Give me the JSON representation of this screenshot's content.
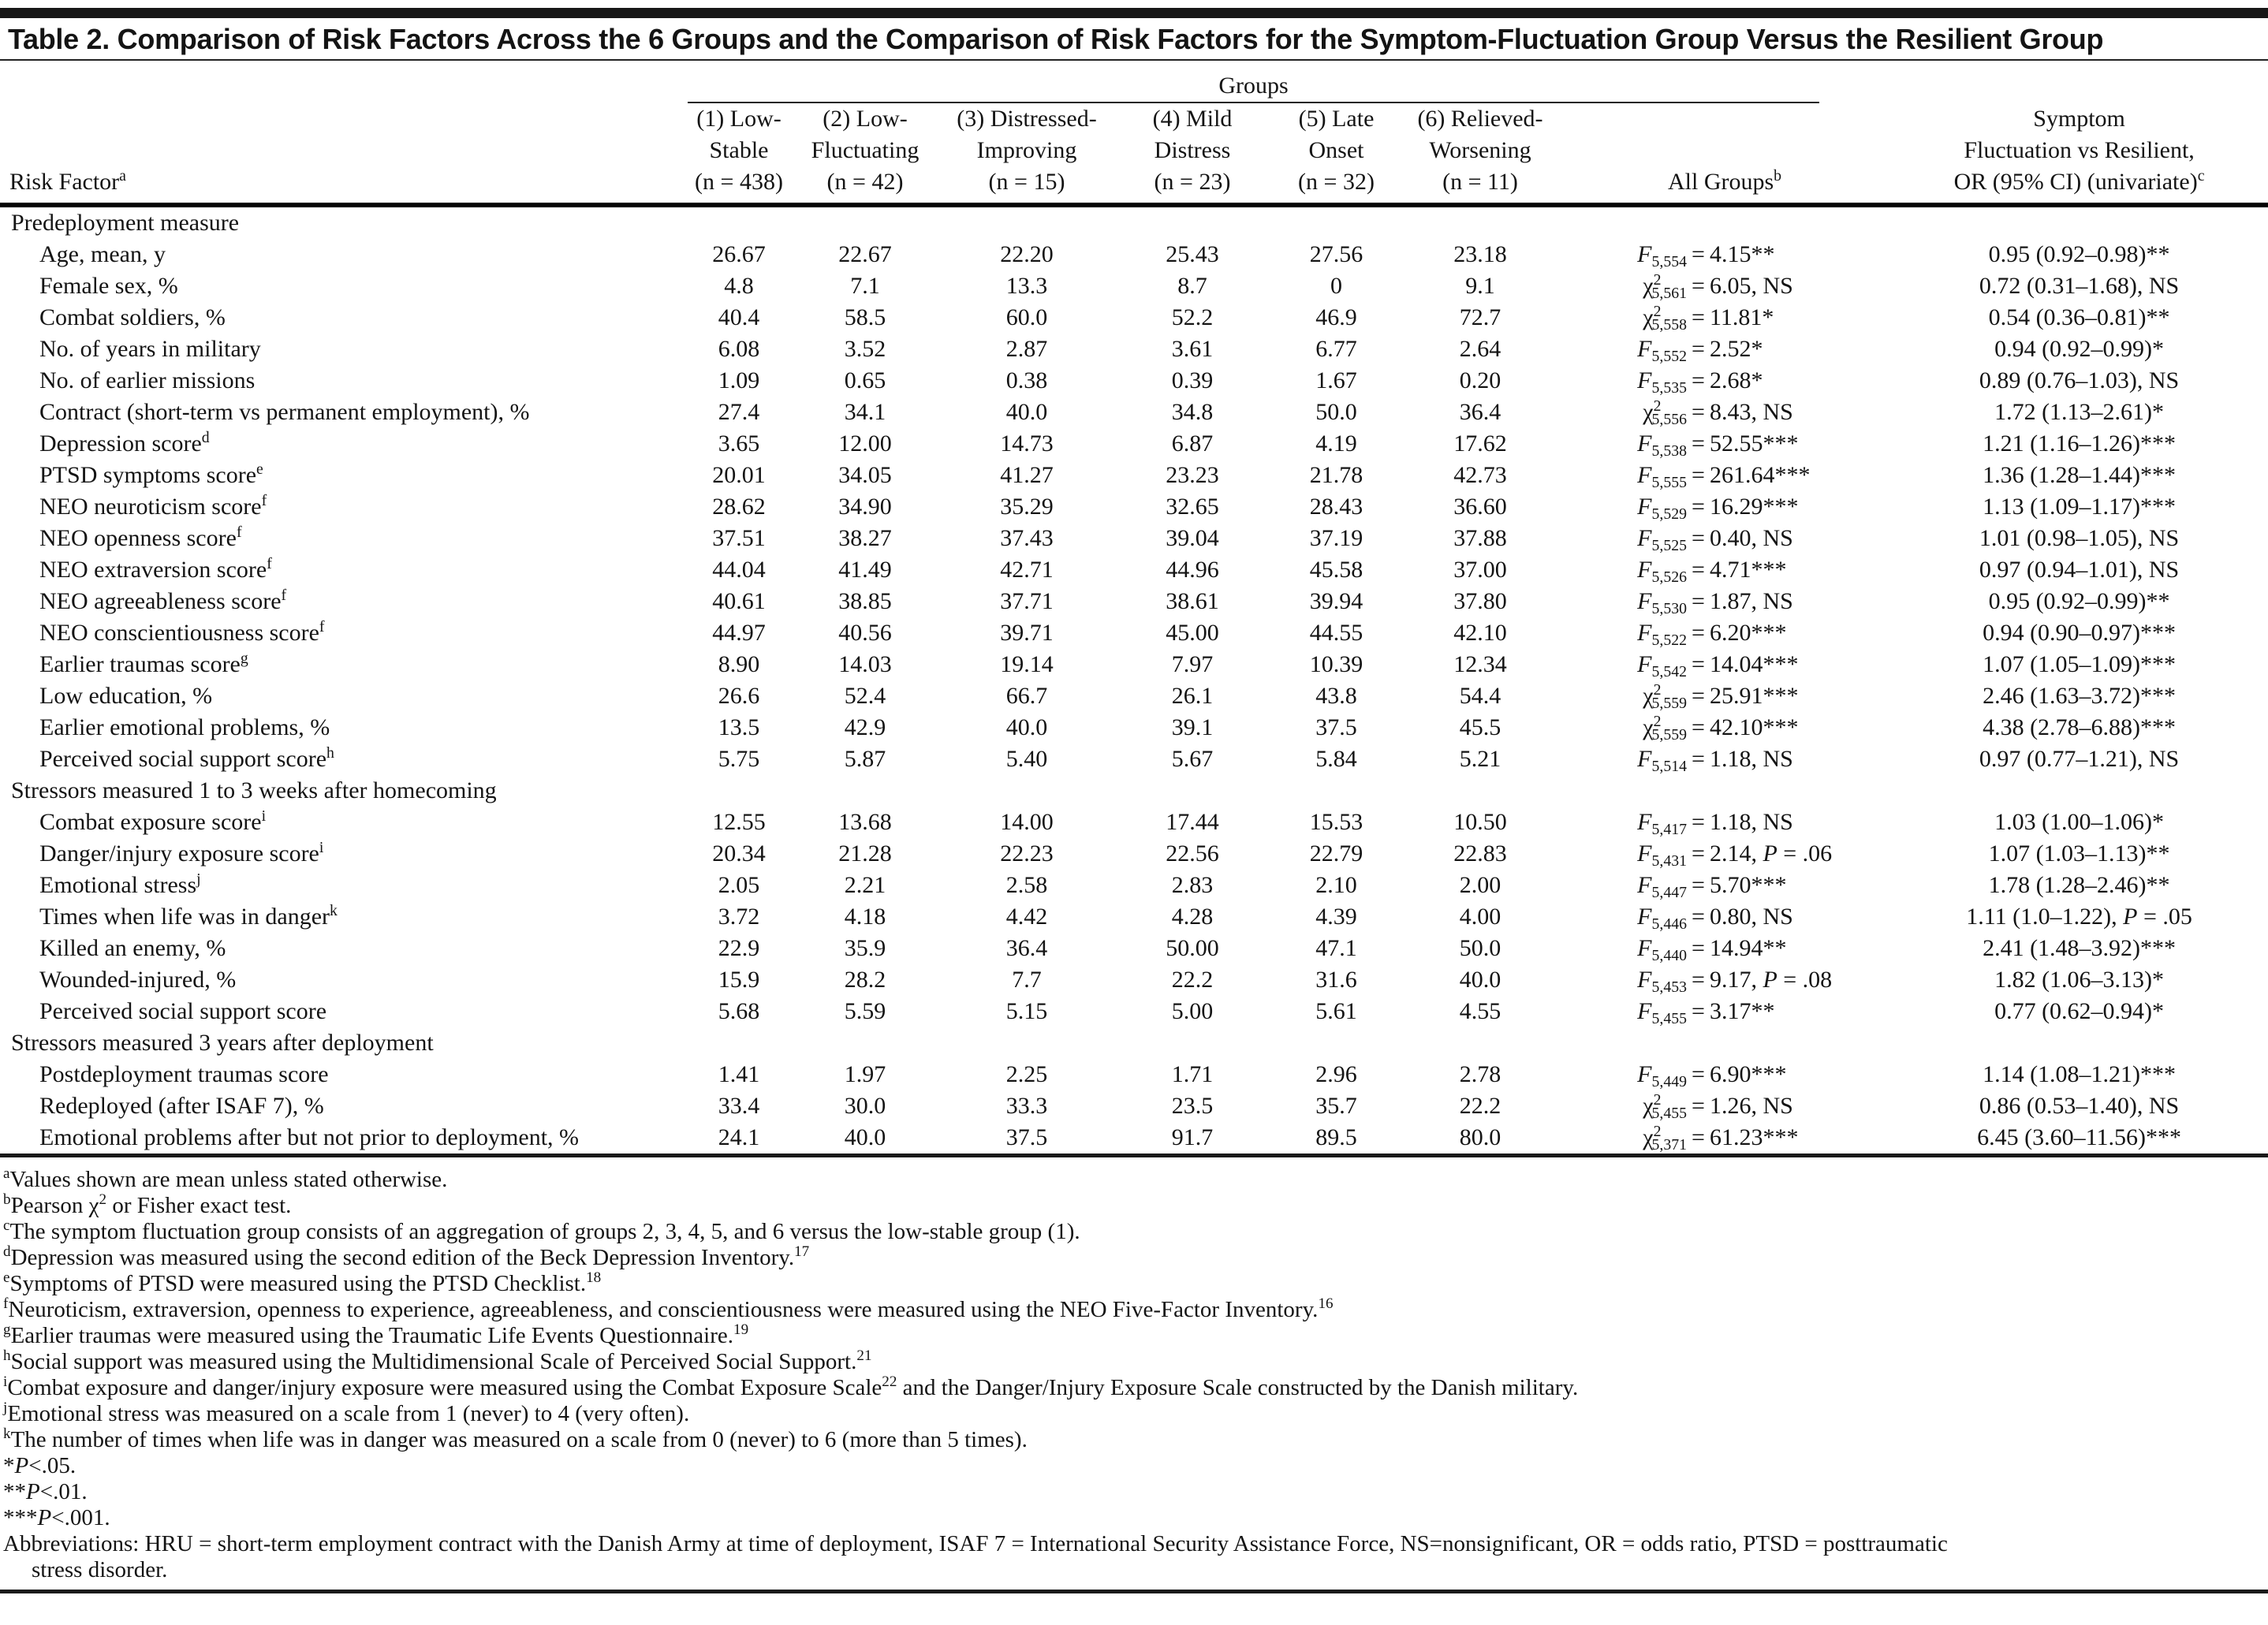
{
  "title": "Table 2. Comparison of Risk Factors Across the 6 Groups and the Comparison of Risk Factors for the Symptom-Fluctuation Group Versus the Resilient Group",
  "header": {
    "groups_spanner": "Groups",
    "risk_factor": {
      "label": "Risk Factor",
      "sup": "a"
    },
    "group_columns": [
      {
        "lines": [
          "(1) Low-",
          "Stable",
          "(n = 438)"
        ]
      },
      {
        "lines": [
          "(2) Low-",
          "Fluctuating",
          "(n = 42)"
        ]
      },
      {
        "lines": [
          "(3) Distressed-",
          "Improving",
          "(n = 15)"
        ]
      },
      {
        "lines": [
          "(4) Mild",
          "Distress",
          "(n = 23)"
        ]
      },
      {
        "lines": [
          "(5) Late",
          "Onset",
          "(n = 32)"
        ]
      },
      {
        "lines": [
          "(6) Relieved-",
          "Worsening",
          "(n = 11)"
        ]
      }
    ],
    "all_groups": {
      "label": "All Groups",
      "sup": "b"
    },
    "or_column": {
      "lines": [
        "Symptom",
        "Fluctuation vs Resilient,",
        "OR (95% CI) (univariate)"
      ],
      "sup": "c"
    }
  },
  "sections": [
    {
      "label": "Predeployment measure",
      "rows": [
        {
          "label": "Age, mean, y",
          "sup": "",
          "values": [
            "26.67",
            "22.67",
            "22.20",
            "25.43",
            "27.56",
            "23.18"
          ],
          "stat": {
            "sym": "F",
            "sub": "5,554",
            "rest": "4.15**"
          },
          "or": "0.95 (0.92–0.98)**"
        },
        {
          "label": "Female sex, %",
          "sup": "",
          "values": [
            "4.8",
            "7.1",
            "13.3",
            "8.7",
            "0",
            "9.1"
          ],
          "stat": {
            "sym": "χ2",
            "sub": "5,561",
            "rest": "6.05, NS"
          },
          "or": "0.72 (0.31–1.68), NS"
        },
        {
          "label": "Combat soldiers, %",
          "sup": "",
          "values": [
            "40.4",
            "58.5",
            "60.0",
            "52.2",
            "46.9",
            "72.7"
          ],
          "stat": {
            "sym": "χ2",
            "sub": "5,558",
            "rest": "11.81*"
          },
          "or": "0.54 (0.36–0.81)**"
        },
        {
          "label": "No. of years in military",
          "sup": "",
          "values": [
            "6.08",
            "3.52",
            "2.87",
            "3.61",
            "6.77",
            "2.64"
          ],
          "stat": {
            "sym": "F",
            "sub": "5,552",
            "rest": "2.52*"
          },
          "or": "0.94 (0.92–0.99)*"
        },
        {
          "label": "No. of earlier missions",
          "sup": "",
          "values": [
            "1.09",
            "0.65",
            "0.38",
            "0.39",
            "1.67",
            "0.20"
          ],
          "stat": {
            "sym": "F",
            "sub": "5,535",
            "rest": "2.68*"
          },
          "or": "0.89 (0.76–1.03), NS"
        },
        {
          "label": "Contract (short-term vs permanent employment), %",
          "sup": "",
          "values": [
            "27.4",
            "34.1",
            "40.0",
            "34.8",
            "50.0",
            "36.4"
          ],
          "stat": {
            "sym": "χ2",
            "sub": "5,556",
            "rest": "8.43, NS"
          },
          "or": "1.72 (1.13–2.61)*"
        },
        {
          "label": "Depression score",
          "sup": "d",
          "values": [
            "3.65",
            "12.00",
            "14.73",
            "6.87",
            "4.19",
            "17.62"
          ],
          "stat": {
            "sym": "F",
            "sub": "5,538",
            "rest": "52.55***"
          },
          "or": "1.21 (1.16–1.26)***"
        },
        {
          "label": "PTSD symptoms score",
          "sup": "e",
          "values": [
            "20.01",
            "34.05",
            "41.27",
            "23.23",
            "21.78",
            "42.73"
          ],
          "stat": {
            "sym": "F",
            "sub": "5,555",
            "rest": "261.64***"
          },
          "or": "1.36 (1.28–1.44)***"
        },
        {
          "label": "NEO neuroticism score",
          "sup": "f",
          "values": [
            "28.62",
            "34.90",
            "35.29",
            "32.65",
            "28.43",
            "36.60"
          ],
          "stat": {
            "sym": "F",
            "sub": "5,529",
            "rest": "16.29***"
          },
          "or": "1.13 (1.09–1.17)***"
        },
        {
          "label": "NEO openness score",
          "sup": "f",
          "values": [
            "37.51",
            "38.27",
            "37.43",
            "39.04",
            "37.19",
            "37.88"
          ],
          "stat": {
            "sym": "F",
            "sub": "5,525",
            "rest": "0.40, NS"
          },
          "or": "1.01 (0.98–1.05), NS"
        },
        {
          "label": "NEO extraversion score",
          "sup": "f",
          "values": [
            "44.04",
            "41.49",
            "42.71",
            "44.96",
            "45.58",
            "37.00"
          ],
          "stat": {
            "sym": "F",
            "sub": "5,526",
            "rest": "4.71***"
          },
          "or": "0.97 (0.94–1.01), NS"
        },
        {
          "label": "NEO agreeableness score",
          "sup": "f",
          "values": [
            "40.61",
            "38.85",
            "37.71",
            "38.61",
            "39.94",
            "37.80"
          ],
          "stat": {
            "sym": "F",
            "sub": "5,530",
            "rest": "1.87, NS"
          },
          "or": "0.95 (0.92–0.99)**"
        },
        {
          "label": "NEO conscientiousness score",
          "sup": "f",
          "values": [
            "44.97",
            "40.56",
            "39.71",
            "45.00",
            "44.55",
            "42.10"
          ],
          "stat": {
            "sym": "F",
            "sub": "5,522",
            "rest": "6.20***"
          },
          "or": "0.94 (0.90–0.97)***"
        },
        {
          "label": "Earlier traumas score",
          "sup": "g",
          "values": [
            "8.90",
            "14.03",
            "19.14",
            "7.97",
            "10.39",
            "12.34"
          ],
          "stat": {
            "sym": "F",
            "sub": "5,542",
            "rest": "14.04***"
          },
          "or": "1.07 (1.05–1.09)***"
        },
        {
          "label": "Low education, %",
          "sup": "",
          "values": [
            "26.6",
            "52.4",
            "66.7",
            "26.1",
            "43.8",
            "54.4"
          ],
          "stat": {
            "sym": "χ2",
            "sub": "5,559",
            "rest": "25.91***"
          },
          "or": "2.46 (1.63–3.72)***"
        },
        {
          "label": "Earlier emotional problems, %",
          "sup": "",
          "values": [
            "13.5",
            "42.9",
            "40.0",
            "39.1",
            "37.5",
            "45.5"
          ],
          "stat": {
            "sym": "χ2",
            "sub": "5,559",
            "rest": "42.10***"
          },
          "or": "4.38 (2.78–6.88)***"
        },
        {
          "label": "Perceived social support score",
          "sup": "h",
          "values": [
            "5.75",
            "5.87",
            "5.40",
            "5.67",
            "5.84",
            "5.21"
          ],
          "stat": {
            "sym": "F",
            "sub": "5,514",
            "rest": "1.18, NS"
          },
          "or": "0.97 (0.77–1.21), NS"
        }
      ]
    },
    {
      "label": "Stressors measured 1 to 3 weeks after homecoming",
      "rows": [
        {
          "label": "Combat exposure score",
          "sup": "i",
          "values": [
            "12.55",
            "13.68",
            "14.00",
            "17.44",
            "15.53",
            "10.50"
          ],
          "stat": {
            "sym": "F",
            "sub": "5,417",
            "rest": "1.18, NS"
          },
          "or": "1.03 (1.00–1.06)*"
        },
        {
          "label": "Danger/injury exposure score",
          "sup": "i",
          "values": [
            "20.34",
            "21.28",
            "22.23",
            "22.56",
            "22.79",
            "22.83"
          ],
          "stat": {
            "sym": "F",
            "sub": "5,431",
            "rest": "2.14, P = .06"
          },
          "or": "1.07 (1.03–1.13)**"
        },
        {
          "label": "Emotional stress",
          "sup": "j",
          "values": [
            "2.05",
            "2.21",
            "2.58",
            "2.83",
            "2.10",
            "2.00"
          ],
          "stat": {
            "sym": "F",
            "sub": "5,447",
            "rest": "5.70***"
          },
          "or": "1.78 (1.28–2.46)**"
        },
        {
          "label": "Times when life was in danger",
          "sup": "k",
          "values": [
            "3.72",
            "4.18",
            "4.42",
            "4.28",
            "4.39",
            "4.00"
          ],
          "stat": {
            "sym": "F",
            "sub": "5,446",
            "rest": "0.80, NS"
          },
          "or": "1.11 (1.0–1.22), P = .05"
        },
        {
          "label": "Killed an enemy, %",
          "sup": "",
          "values": [
            "22.9",
            "35.9",
            "36.4",
            "50.00",
            "47.1",
            "50.0"
          ],
          "stat": {
            "sym": "F",
            "sub": "5,440",
            "rest": "14.94**"
          },
          "or": "2.41 (1.48–3.92)***"
        },
        {
          "label": "Wounded-injured, %",
          "sup": "",
          "values": [
            "15.9",
            "28.2",
            "7.7",
            "22.2",
            "31.6",
            "40.0"
          ],
          "stat": {
            "sym": "F",
            "sub": "5,453",
            "rest": "9.17, P = .08"
          },
          "or": "1.82 (1.06–3.13)*"
        },
        {
          "label": "Perceived social support score",
          "sup": "",
          "values": [
            "5.68",
            "5.59",
            "5.15",
            "5.00",
            "5.61",
            "4.55"
          ],
          "stat": {
            "sym": "F",
            "sub": "5,455",
            "rest": "3.17**"
          },
          "or": "0.77 (0.62–0.94)*"
        }
      ]
    },
    {
      "label": "Stressors measured 3 years after deployment",
      "rows": [
        {
          "label": "Postdeployment traumas score",
          "sup": "",
          "values": [
            "1.41",
            "1.97",
            "2.25",
            "1.71",
            "2.96",
            "2.78"
          ],
          "stat": {
            "sym": "F",
            "sub": "5,449",
            "rest": "6.90***"
          },
          "or": "1.14 (1.08–1.21)***"
        },
        {
          "label": "Redeployed (after ISAF 7), %",
          "sup": "",
          "values": [
            "33.4",
            "30.0",
            "33.3",
            "23.5",
            "35.7",
            "22.2"
          ],
          "stat": {
            "sym": "χ2",
            "sub": "5,455",
            "rest": "1.26, NS"
          },
          "or": "0.86 (0.53–1.40), NS"
        },
        {
          "label": "Emotional problems after but not prior to deployment, %",
          "sup": "",
          "values": [
            "24.1",
            "40.0",
            "37.5",
            "91.7",
            "89.5",
            "80.0"
          ],
          "stat": {
            "sym": "χ2",
            "sub": "5,371",
            "rest": "61.23***"
          },
          "or": "6.45 (3.60–11.56)***"
        }
      ]
    }
  ],
  "footnotes": [
    {
      "sup": "a",
      "marker": "",
      "text": "Values shown are mean unless stated otherwise."
    },
    {
      "sup": "b",
      "marker": "",
      "text": "Pearson χ^{2} or Fisher exact test."
    },
    {
      "sup": "c",
      "marker": "",
      "text": "The symptom fluctuation group consists of an aggregation of groups 2, 3, 4, 5, and 6 versus the low-stable group (1)."
    },
    {
      "sup": "d",
      "marker": "",
      "text": "Depression was measured using the second edition of the Beck Depression Inventory.^{17}"
    },
    {
      "sup": "e",
      "marker": "",
      "text": "Symptoms of PTSD were measured using the PTSD Checklist.^{18}"
    },
    {
      "sup": "f",
      "marker": "",
      "text": "Neuroticism, extraversion, openness to experience, agreeableness, and conscientiousness were measured using the NEO Five-Factor Inventory.^{16}"
    },
    {
      "sup": "g",
      "marker": "",
      "text": "Earlier traumas were measured using the Traumatic Life Events Questionnaire.^{19}"
    },
    {
      "sup": "h",
      "marker": "",
      "text": "Social support was measured using the Multidimensional Scale of Perceived Social Support.^{21}"
    },
    {
      "sup": "i",
      "marker": "",
      "text": "Combat exposure and danger/injury exposure were measured using the Combat Exposure Scale^{22} and the Danger/Injury Exposure Scale constructed by the Danish military."
    },
    {
      "sup": "j",
      "marker": "",
      "text": "Emotional stress was measured on a scale from 1 (never) to 4 (very often)."
    },
    {
      "sup": "k",
      "marker": "",
      "text": "The number of times when life was in danger was measured on a scale from 0 (never) to 6 (more than 5 times)."
    },
    {
      "sup": "",
      "marker": "*",
      "text": "P<.05."
    },
    {
      "sup": "",
      "marker": "**",
      "text": "P<.01."
    },
    {
      "sup": "",
      "marker": "***",
      "text": "P<.001."
    },
    {
      "sup": "",
      "marker": "",
      "text": "Abbreviations: HRU = short-term employment contract with the Danish Army at time of deployment, ISAF 7 = International Security Assistance Force, NS=nonsignificant, OR = odds ratio, PTSD = posttraumatic stress disorder."
    }
  ]
}
